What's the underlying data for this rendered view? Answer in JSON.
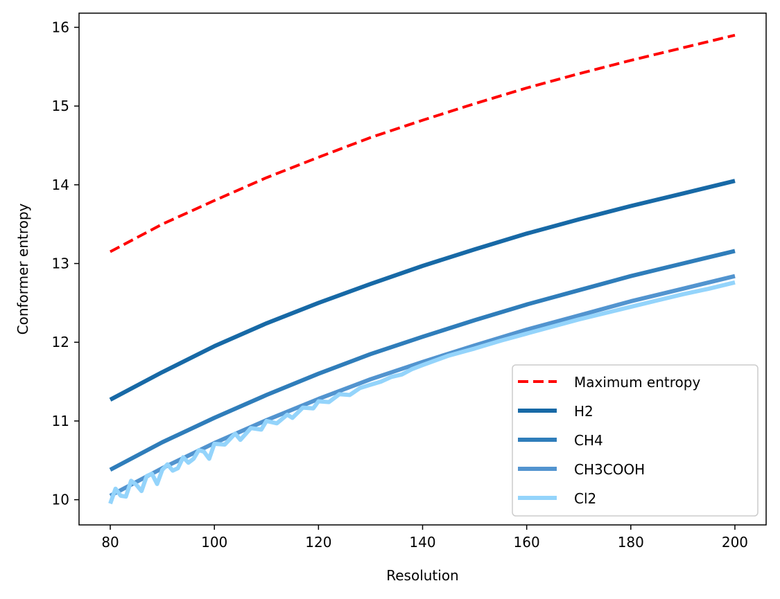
{
  "chart_data": {
    "type": "line",
    "title": "",
    "xlabel": "Resolution",
    "ylabel": "Conformer entropy",
    "xlim": [
      74,
      206
    ],
    "ylim": [
      9.68,
      16.18
    ],
    "xticks": [
      80,
      100,
      120,
      140,
      160,
      180,
      200
    ],
    "yticks": [
      10,
      11,
      12,
      13,
      14,
      15,
      16
    ],
    "grid": false,
    "legend_position": "lower-right",
    "x": [
      80,
      200
    ],
    "series": [
      {
        "name": "Maximum entropy",
        "color": "#ff0000",
        "dash": "dashed",
        "points": [
          [
            80,
            13.15
          ],
          [
            90,
            13.5
          ],
          [
            100,
            13.8
          ],
          [
            110,
            14.09
          ],
          [
            120,
            14.35
          ],
          [
            130,
            14.6
          ],
          [
            140,
            14.82
          ],
          [
            150,
            15.03
          ],
          [
            160,
            15.23
          ],
          [
            170,
            15.41
          ],
          [
            180,
            15.58
          ],
          [
            190,
            15.74
          ],
          [
            200,
            15.9
          ]
        ]
      },
      {
        "name": "H2",
        "color": "#1769a6",
        "dash": "solid",
        "points": [
          [
            80,
            11.27
          ],
          [
            90,
            11.62
          ],
          [
            100,
            11.95
          ],
          [
            110,
            12.24
          ],
          [
            120,
            12.5
          ],
          [
            130,
            12.74
          ],
          [
            140,
            12.97
          ],
          [
            150,
            13.18
          ],
          [
            160,
            13.38
          ],
          [
            170,
            13.56
          ],
          [
            180,
            13.73
          ],
          [
            190,
            13.89
          ],
          [
            200,
            14.05
          ]
        ]
      },
      {
        "name": "CH4",
        "color": "#2f7dba",
        "dash": "solid",
        "points": [
          [
            80,
            10.38
          ],
          [
            90,
            10.73
          ],
          [
            100,
            11.04
          ],
          [
            110,
            11.33
          ],
          [
            120,
            11.6
          ],
          [
            130,
            11.85
          ],
          [
            140,
            12.07
          ],
          [
            150,
            12.28
          ],
          [
            160,
            12.48
          ],
          [
            170,
            12.66
          ],
          [
            180,
            12.84
          ],
          [
            190,
            13.0
          ],
          [
            200,
            13.16
          ]
        ]
      },
      {
        "name": "CH3COOH",
        "color": "#5294cf",
        "dash": "solid",
        "points": [
          [
            80,
            10.05
          ],
          [
            90,
            10.4
          ],
          [
            100,
            10.72
          ],
          [
            110,
            11.01
          ],
          [
            120,
            11.28
          ],
          [
            130,
            11.53
          ],
          [
            140,
            11.75
          ],
          [
            150,
            11.96
          ],
          [
            160,
            12.16
          ],
          [
            170,
            12.34
          ],
          [
            180,
            12.52
          ],
          [
            190,
            12.68
          ],
          [
            200,
            12.84
          ]
        ]
      },
      {
        "name": "Cl2",
        "color": "#94d4fb",
        "dash": "solid",
        "points": [
          [
            80,
            9.95
          ],
          [
            81,
            10.14
          ],
          [
            82,
            10.05
          ],
          [
            83,
            10.04
          ],
          [
            84,
            10.24
          ],
          [
            85,
            10.19
          ],
          [
            86,
            10.11
          ],
          [
            87,
            10.3
          ],
          [
            88,
            10.33
          ],
          [
            89,
            10.2
          ],
          [
            90,
            10.38
          ],
          [
            91,
            10.45
          ],
          [
            92,
            10.37
          ],
          [
            93,
            10.4
          ],
          [
            94,
            10.54
          ],
          [
            95,
            10.47
          ],
          [
            96,
            10.52
          ],
          [
            97,
            10.63
          ],
          [
            98,
            10.61
          ],
          [
            99,
            10.52
          ],
          [
            100,
            10.71
          ],
          [
            102,
            10.7
          ],
          [
            104,
            10.84
          ],
          [
            105,
            10.76
          ],
          [
            107,
            10.91
          ],
          [
            109,
            10.89
          ],
          [
            110,
            11.0
          ],
          [
            112,
            10.97
          ],
          [
            114,
            11.08
          ],
          [
            115,
            11.04
          ],
          [
            117,
            11.17
          ],
          [
            119,
            11.16
          ],
          [
            120,
            11.25
          ],
          [
            122,
            11.24
          ],
          [
            124,
            11.34
          ],
          [
            126,
            11.33
          ],
          [
            128,
            11.42
          ],
          [
            130,
            11.46
          ],
          [
            132,
            11.5
          ],
          [
            134,
            11.56
          ],
          [
            136,
            11.59
          ],
          [
            138,
            11.66
          ],
          [
            140,
            11.71
          ],
          [
            145,
            11.83
          ],
          [
            150,
            11.92
          ],
          [
            155,
            12.02
          ],
          [
            160,
            12.11
          ],
          [
            165,
            12.2
          ],
          [
            170,
            12.29
          ],
          [
            175,
            12.37
          ],
          [
            180,
            12.45
          ],
          [
            185,
            12.53
          ],
          [
            190,
            12.61
          ],
          [
            195,
            12.68
          ],
          [
            200,
            12.76
          ]
        ]
      }
    ]
  }
}
